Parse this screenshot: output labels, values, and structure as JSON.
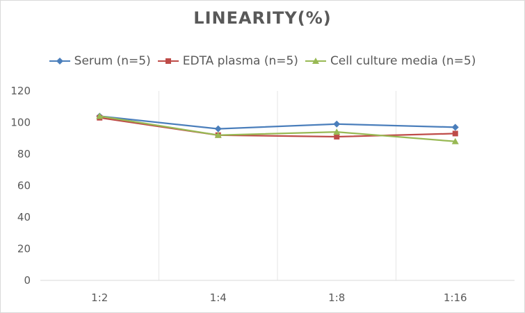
{
  "chart_data": {
    "type": "line",
    "title": "LINEARITY(%)",
    "categories": [
      "1:2",
      "1:4",
      "1:8",
      "1:16"
    ],
    "ylim": [
      0,
      120
    ],
    "yticks": [
      0,
      20,
      40,
      60,
      80,
      100,
      120
    ],
    "grid": "vertical",
    "legend_position": "top",
    "series": [
      {
        "name": "Serum (n=5)",
        "values": [
          104,
          96,
          99,
          97
        ],
        "color": "#4a7ebb",
        "marker": "diamond"
      },
      {
        "name": "EDTA plasma (n=5)",
        "values": [
          103,
          92,
          91,
          93
        ],
        "color": "#be4b48",
        "marker": "square"
      },
      {
        "name": "Cell culture media (n=5)",
        "values": [
          104,
          92,
          94,
          88
        ],
        "color": "#98b954",
        "marker": "triangle"
      }
    ]
  }
}
